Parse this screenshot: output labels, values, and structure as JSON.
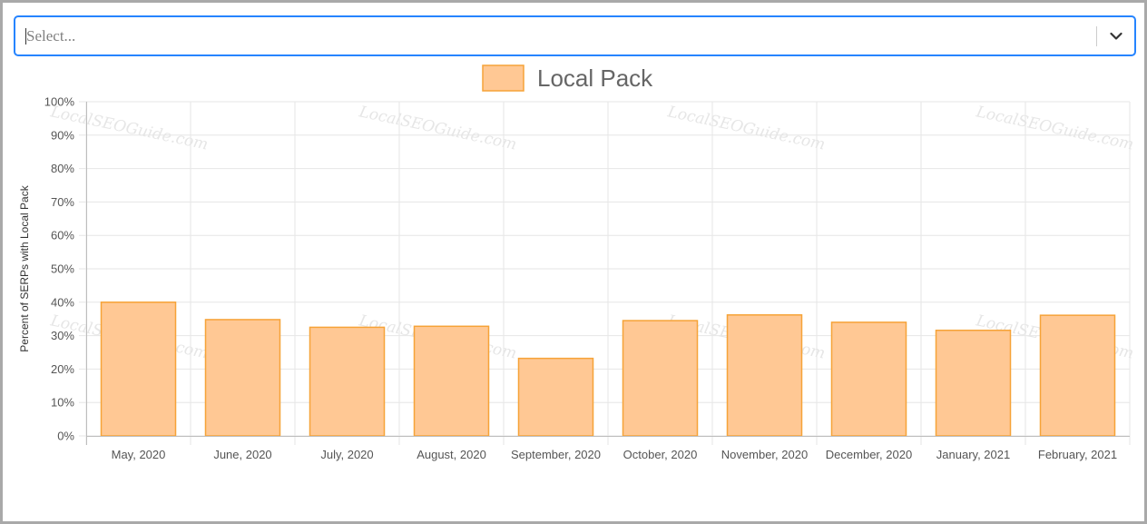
{
  "select": {
    "placeholder": "Select..."
  },
  "watermark": "LocalSEOGuide.com",
  "chart_data": {
    "type": "bar",
    "categories": [
      "May, 2020",
      "June, 2020",
      "July, 2020",
      "August, 2020",
      "September, 2020",
      "October, 2020",
      "November, 2020",
      "December, 2020",
      "January, 2021",
      "February, 2021"
    ],
    "series": [
      {
        "name": "Local Pack",
        "values": [
          40,
          34.8,
          32.5,
          32.8,
          23.2,
          34.5,
          36.2,
          34,
          31.6,
          36.1
        ]
      }
    ],
    "ylabel": "Percent of SERPs with Local Pack",
    "ylim": [
      0,
      100
    ],
    "ytick_step": 10,
    "ytick_suffix": "%",
    "legend_position": "top",
    "grid": true,
    "colors": {
      "bar_fill": "#ffc894",
      "bar_stroke": "#f6a338",
      "grid": "#e6e6e6"
    }
  }
}
